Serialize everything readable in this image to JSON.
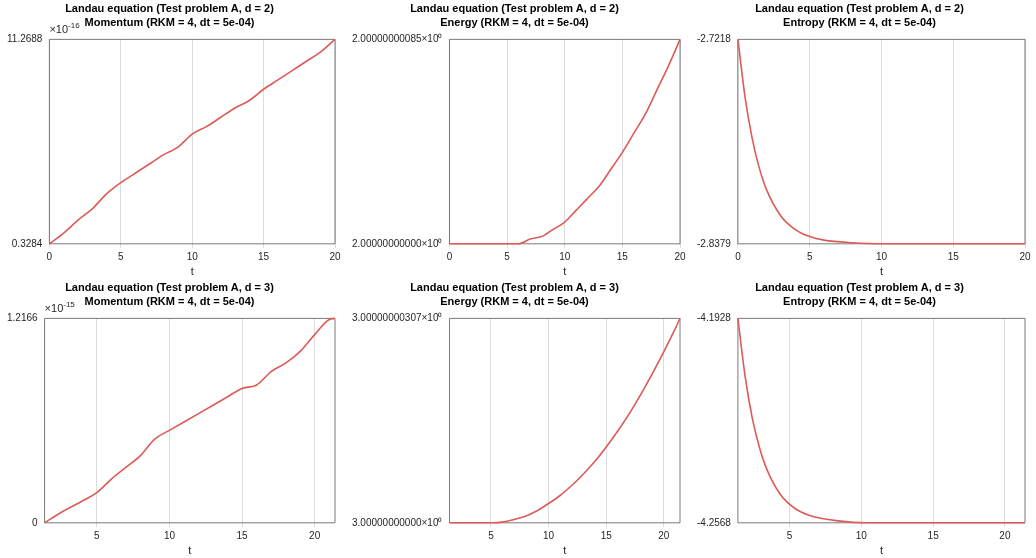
{
  "chart_data": [
    {
      "type": "line",
      "title": "Landau equation (Test problem A, d = 2)",
      "subtitle": "Momentum (RKM = 4, dt = 5e-04)",
      "xlabel": "t",
      "color": "#dd5a57",
      "grid": "x",
      "annotations": [
        "×10$^{-16}$"
      ],
      "x": [
        0,
        1,
        2,
        3,
        4,
        5,
        6,
        7,
        8,
        9,
        10,
        11,
        12,
        13,
        14,
        15,
        16,
        17,
        18,
        19,
        20
      ],
      "values": [
        0.3284,
        0.9,
        1.6,
        2.2,
        3.0,
        3.6,
        4.1,
        4.6,
        5.1,
        5.5,
        6.2,
        6.6,
        7.1,
        7.6,
        8.0,
        8.6,
        9.1,
        9.6,
        10.1,
        10.6,
        11.2688
      ],
      "xlim": [
        0,
        20
      ],
      "xticks": [
        0,
        5,
        10,
        15,
        20
      ],
      "ylim": [
        0.3284,
        11.2688
      ],
      "yticks": [
        0.3284,
        11.2688
      ]
    },
    {
      "type": "line",
      "title": "Landau equation (Test problem A, d = 2)",
      "subtitle": "Energy (RKM = 4, dt = 5e-04)",
      "xlabel": "t",
      "color": "#dd5a57",
      "grid": "x",
      "x": [
        0,
        5,
        6,
        7,
        8,
        9,
        10,
        11,
        12,
        13,
        14,
        15,
        16,
        17,
        18,
        19,
        20
      ],
      "values": [
        2,
        2,
        2,
        2.00000000002,
        2.00000000003,
        2.00000000006,
        2.00000000009,
        2.00000000014,
        2.00000000019,
        2.00000000024,
        2.00000000031,
        2.00000000038,
        2.00000000046,
        2.00000000054,
        2.00000000064,
        2.00000000074,
        2.00000000085
      ],
      "xlim": [
        0,
        20
      ],
      "xticks": [
        0,
        5,
        10,
        15,
        20
      ],
      "ylim": [
        2,
        2.00000000085
      ],
      "yticks": [
        {
          "value": 2,
          "label": "2.00000000000×10⁰"
        },
        {
          "value": 2.00000000085,
          "label": "2.00000000085×10⁰"
        }
      ]
    },
    {
      "type": "line",
      "title": "Landau equation (Test problem A, d = 2)",
      "subtitle": "Entropy (RKM = 4, dt = 5e-04)",
      "xlabel": "t",
      "color": "#dd5a57",
      "grid": "x",
      "x": [
        0,
        0.5,
        1,
        1.5,
        2,
        3,
        4,
        5,
        6,
        8,
        10,
        20
      ],
      "values": [
        -2.7218,
        -2.7547,
        -2.7783,
        -2.7952,
        -2.8073,
        -2.8222,
        -2.8298,
        -2.8338,
        -2.8358,
        -2.8373,
        -2.8379,
        -2.8379
      ],
      "xlim": [
        0,
        20
      ],
      "xticks": [
        0,
        5,
        10,
        15,
        20
      ],
      "ylim": [
        -2.8379,
        -2.7218
      ],
      "yticks": [
        -2.8379,
        -2.7218
      ]
    },
    {
      "type": "line",
      "title": "Landau equation (Test problem A, d = 3)",
      "subtitle": "Momentum (RKM = 4, dt = 5e-04)",
      "xlabel": "t",
      "color": "#dd5a57",
      "grid": "x",
      "annotations": [
        "×10$^{-15}$"
      ],
      "x": [
        1.4,
        2.5,
        4,
        5,
        6,
        7,
        8,
        9,
        10,
        11,
        12,
        13,
        14,
        15,
        16,
        17,
        18,
        19,
        20,
        21,
        21.4
      ],
      "values": [
        0,
        0.06,
        0.13,
        0.18,
        0.26,
        0.33,
        0.4,
        0.5,
        0.55,
        0.6,
        0.65,
        0.7,
        0.75,
        0.8,
        0.82,
        0.9,
        0.95,
        1.02,
        1.12,
        1.21,
        1.2166
      ],
      "xlim": [
        1.4,
        21.4
      ],
      "xticks": [
        5,
        10,
        15,
        20
      ],
      "ylim": [
        0,
        1.2166
      ],
      "yticks": [
        0,
        1.2166
      ]
    },
    {
      "type": "line",
      "title": "Landau equation (Test problem A, d = 3)",
      "subtitle": "Energy (RKM = 4, dt = 5e-04)",
      "xlabel": "t",
      "color": "#dd5a57",
      "grid": "x",
      "x": [
        1.4,
        5,
        6,
        7,
        8,
        9,
        10,
        11,
        12,
        13,
        14,
        15,
        16,
        17,
        18,
        19,
        20,
        21,
        21.4
      ],
      "values": [
        3,
        3,
        3.00000000001,
        3.00000000005,
        3.0000000001,
        3.00000000018,
        3.00000000029,
        3.00000000041,
        3.00000000056,
        3.00000000073,
        3.00000000092,
        3.00000000114,
        3.00000000138,
        3.00000000164,
        3.00000000193,
        3.00000000224,
        3.00000000257,
        3.00000000292,
        3.00000000307
      ],
      "xlim": [
        1.4,
        21.4
      ],
      "xticks": [
        5,
        10,
        15,
        20
      ],
      "ylim": [
        3,
        3.00000000307
      ],
      "yticks": [
        {
          "value": 3,
          "label": "3.00000000000×10⁰"
        },
        {
          "value": 3.00000000307,
          "label": "3.00000000307×10⁰"
        }
      ]
    },
    {
      "type": "line",
      "title": "Landau equation (Test problem A, d = 3)",
      "subtitle": "Entropy (RKM = 4, dt = 5e-04)",
      "xlabel": "t",
      "color": "#dd5a57",
      "grid": "x",
      "x": [
        1.4,
        1.9,
        2.4,
        2.9,
        3.4,
        4.4,
        5.4,
        6.4,
        8.4,
        10.4,
        21.4
      ],
      "values": [
        -4.1928,
        -4.2109,
        -4.224,
        -4.2332,
        -4.2399,
        -4.2482,
        -4.2524,
        -4.2545,
        -4.2562,
        -4.2568,
        -4.2568
      ],
      "xlim": [
        1.4,
        21.4
      ],
      "xticks": [
        5,
        10,
        15,
        20
      ],
      "ylim": [
        -4.2568,
        -4.1928
      ],
      "yticks": [
        -4.2568,
        -4.1928
      ]
    }
  ]
}
